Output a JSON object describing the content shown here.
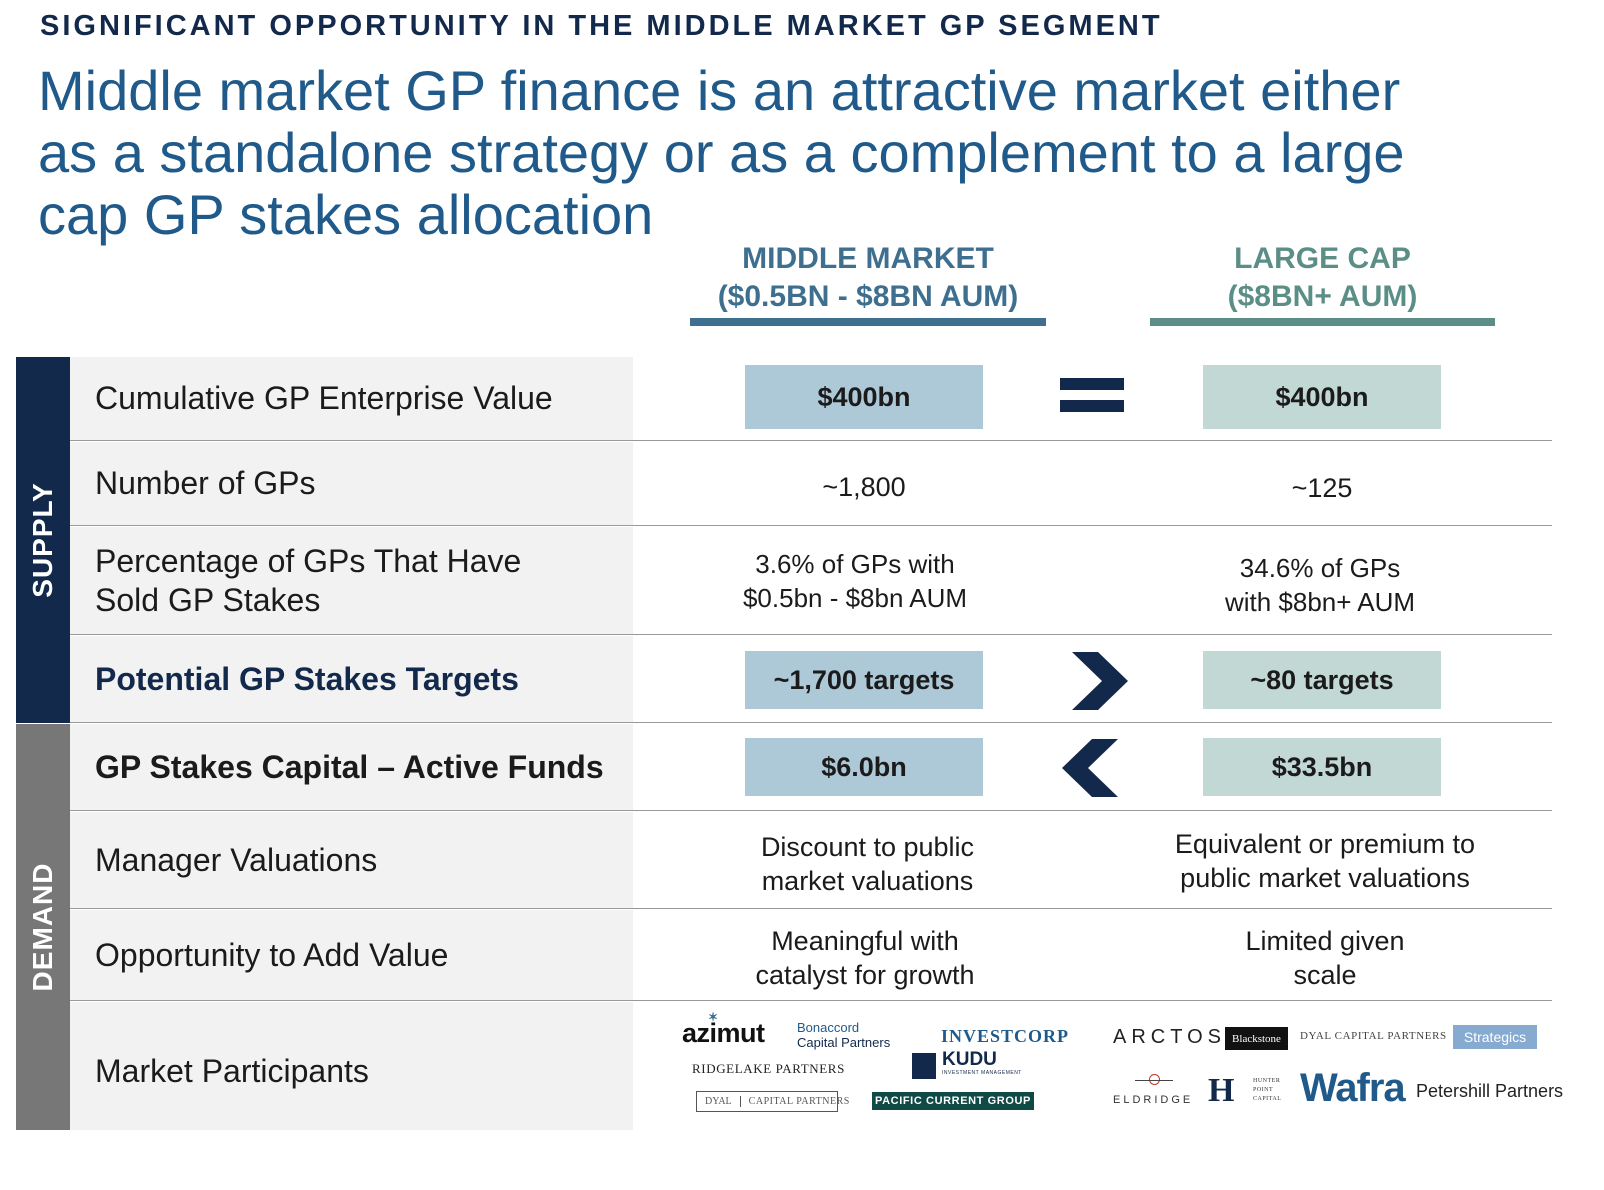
{
  "header": {
    "eyebrow": "SIGNIFICANT OPPORTUNITY IN THE MIDDLE MARKET GP SEGMENT",
    "headline": "Middle market GP finance is an attractive market either as a standalone strategy or as a complement to a large cap GP stakes allocation"
  },
  "columns": {
    "middle_market": {
      "line1": "MIDDLE MARKET",
      "line2": "($0.5BN - $8BN AUM)"
    },
    "large_cap": {
      "line1": "LARGE CAP",
      "line2": "($8BN+ AUM)"
    }
  },
  "sections": {
    "supply": "SUPPLY",
    "demand": "DEMAND"
  },
  "rows": {
    "ev": {
      "label": "Cumulative GP Enterprise Value",
      "mm": "$400bn",
      "lc": "$400bn"
    },
    "num": {
      "label": "Number of GPs",
      "mm": "~1,800",
      "lc": "~125"
    },
    "pct": {
      "label_1": "Percentage of GPs That Have",
      "label_2": "Sold GP Stakes",
      "mm_1": "3.6% of GPs with",
      "mm_2": "$0.5bn - $8bn AUM",
      "lc_1": "34.6% of GPs",
      "lc_2": "with $8bn+ AUM"
    },
    "targets": {
      "label": "Potential GP Stakes Targets",
      "mm": "~1,700 targets",
      "lc": "~80 targets"
    },
    "capital": {
      "label": "GP Stakes Capital – Active Funds",
      "mm": "$6.0bn",
      "lc": "$33.5bn"
    },
    "valuations": {
      "label": "Manager Valuations",
      "mm_1": "Discount to public",
      "mm_2": "market valuations",
      "lc_1": "Equivalent or premium to",
      "lc_2": "public market valuations"
    },
    "add_value": {
      "label": "Opportunity to Add Value",
      "mm_1": "Meaningful with",
      "mm_2": "catalyst for growth",
      "lc_1": "Limited given",
      "lc_2": "scale"
    },
    "participants": {
      "label": "Market Participants"
    }
  },
  "logos": {
    "azimut": "azimut",
    "bonaccord_1": "Bonaccord",
    "bonaccord_2": "Capital Partners",
    "investcorp": "INVESTCORP",
    "ridgelake": "RIDGELAKE PARTNERS",
    "kudu": "KUDU",
    "kudu_sub": "INVESTMENT MANAGEMENT",
    "dyal_a": "DYAL",
    "dyal_b": "CAPITAL PARTNERS",
    "pacific": "PACIFIC CURRENT GROUP",
    "arctos": "ARCTOS",
    "blackstone": "Blackstone",
    "dyal2": "DYAL CAPITAL PARTNERS",
    "strategics": "Strategics",
    "eldridge": "ELDRIDGE",
    "hunter_1": "HUNTER",
    "hunter_2": "POINT",
    "hunter_3": "CAPITAL",
    "wafra": "Wafra",
    "petershill": "Petershill Partners"
  },
  "colors": {
    "navy": "#13294b",
    "mm_accent": "#3e6f8e",
    "lc_accent": "#5b8e86",
    "mm_box": "#adc8d6",
    "lc_box": "#c2d8d4"
  }
}
